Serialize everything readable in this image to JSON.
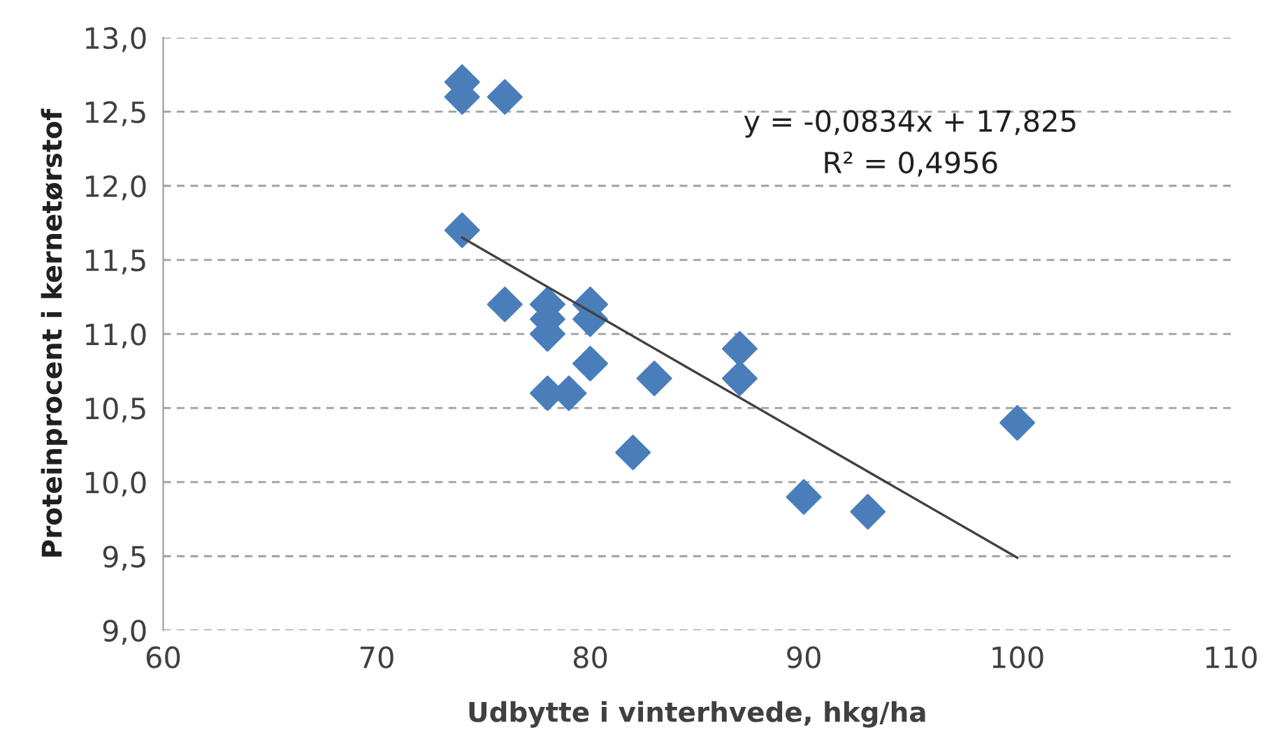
{
  "chart_data": {
    "type": "scatter",
    "xlabel": "Udbytte i vinterhvede, hkg/ha",
    "ylabel": "Proteinprocent i kernetørstof",
    "annotations": [
      "y = -0,0834x + 17,825",
      "R² = 0,4956"
    ],
    "series": [
      {
        "color": "#4a7ebb",
        "marker": "diamond",
        "x": [
          74,
          74,
          76,
          74,
          76,
          78,
          78,
          78,
          80,
          80,
          80,
          78,
          79,
          83,
          87,
          87,
          82,
          90,
          93,
          100
        ],
        "values": [
          12.7,
          12.6,
          12.6,
          11.7,
          11.2,
          11.2,
          11.1,
          11.0,
          11.2,
          11.1,
          10.8,
          10.6,
          10.6,
          10.7,
          10.9,
          10.7,
          10.2,
          9.9,
          9.8,
          10.4
        ]
      },
      {
        "type": "line",
        "color": "#404040",
        "marker": "none",
        "line_style": "solid",
        "x": [
          74,
          100
        ],
        "values": [
          11.65,
          9.49
        ]
      }
    ],
    "xlim": [
      60,
      110
    ],
    "xticks": [
      60,
      70,
      80,
      90,
      100,
      110
    ],
    "ylim": [
      9.0,
      13.0
    ],
    "yticks": [
      {
        "value": 9.0,
        "label": "9,0"
      },
      {
        "value": 9.5,
        "label": "9,5"
      },
      {
        "value": 10.0,
        "label": "10,0"
      },
      {
        "value": 10.5,
        "label": "10,5"
      },
      {
        "value": 11.0,
        "label": "11,0"
      },
      {
        "value": 11.5,
        "label": "11,5"
      },
      {
        "value": 12.0,
        "label": "12,0"
      },
      {
        "value": 12.5,
        "label": "12,5"
      },
      {
        "value": 13.0,
        "label": "13,0"
      }
    ],
    "grid": "y",
    "legend": false
  }
}
